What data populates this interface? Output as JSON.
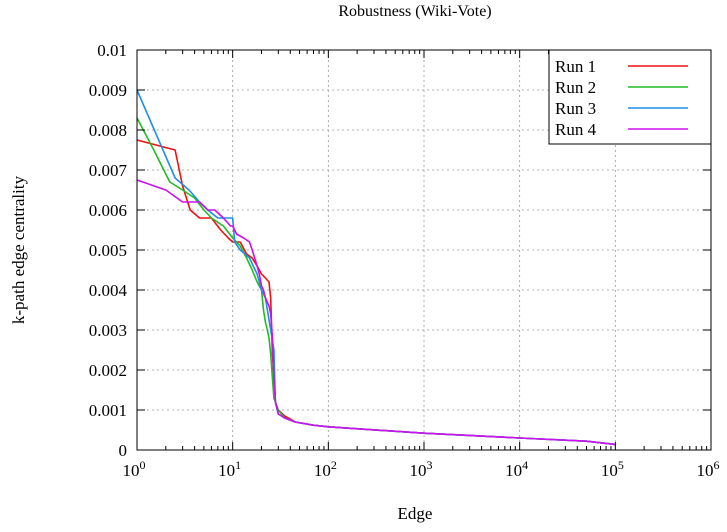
{
  "chart_data": {
    "type": "line",
    "title": "Robustness (Wiki-Vote)",
    "xlabel": "Edge",
    "ylabel": "k-path edge centrality",
    "xscale": "log",
    "xlim": [
      1,
      1000000
    ],
    "ylim": [
      0,
      0.01
    ],
    "grid": true,
    "legend_position": "top-right",
    "x_ticks": [
      {
        "base": "10",
        "exp": "0",
        "value": 1
      },
      {
        "base": "10",
        "exp": "1",
        "value": 10
      },
      {
        "base": "10",
        "exp": "2",
        "value": 100
      },
      {
        "base": "10",
        "exp": "3",
        "value": 1000
      },
      {
        "base": "10",
        "exp": "4",
        "value": 10000
      },
      {
        "base": "10",
        "exp": "5",
        "value": 100000
      },
      {
        "base": "10",
        "exp": "6",
        "value": 1000000
      }
    ],
    "y_ticks": [
      {
        "label": "0",
        "value": 0
      },
      {
        "label": "0.001",
        "value": 0.001
      },
      {
        "label": "0.002",
        "value": 0.002
      },
      {
        "label": "0.003",
        "value": 0.003
      },
      {
        "label": "0.004",
        "value": 0.004
      },
      {
        "label": "0.005",
        "value": 0.005
      },
      {
        "label": "0.006",
        "value": 0.006
      },
      {
        "label": "0.007",
        "value": 0.007
      },
      {
        "label": "0.008",
        "value": 0.008
      },
      {
        "label": "0.009",
        "value": 0.009
      },
      {
        "label": "0.01",
        "value": 0.01
      }
    ],
    "series": [
      {
        "name": "Run 1",
        "color": "#ee1111",
        "x": [
          1,
          2.5,
          3,
          3.6,
          4.5,
          6,
          7.5,
          9,
          10,
          12,
          14,
          16,
          18,
          20,
          22,
          24,
          25,
          26,
          27,
          28,
          30,
          35,
          45,
          70,
          100,
          1000,
          10000,
          50000,
          100000
        ],
        "y": [
          0.00775,
          0.0075,
          0.0066,
          0.006,
          0.0058,
          0.0058,
          0.0055,
          0.0053,
          0.0052,
          0.0052,
          0.0049,
          0.0048,
          0.0046,
          0.0044,
          0.0043,
          0.0042,
          0.0038,
          0.0024,
          0.0018,
          0.0012,
          0.001,
          0.00085,
          0.0007,
          0.00062,
          0.00058,
          0.00042,
          0.0003,
          0.00022,
          0.00014
        ]
      },
      {
        "name": "Run 2",
        "color": "#22bb22",
        "x": [
          1,
          1.5,
          2.2,
          3,
          4,
          5,
          6,
          8,
          10,
          12,
          14,
          16,
          18,
          20,
          21,
          22,
          23,
          24,
          25,
          26,
          27,
          30,
          35,
          45,
          70,
          100,
          1000,
          10000,
          50000,
          100000
        ],
        "y": [
          0.0083,
          0.0075,
          0.0067,
          0.0065,
          0.0063,
          0.006,
          0.0058,
          0.0056,
          0.0053,
          0.0051,
          0.0048,
          0.0045,
          0.0042,
          0.004,
          0.0035,
          0.0032,
          0.003,
          0.0028,
          0.0024,
          0.0018,
          0.0013,
          0.001,
          0.0008,
          0.0007,
          0.00062,
          0.00058,
          0.00042,
          0.0003,
          0.00022,
          0.00014
        ]
      },
      {
        "name": "Run 3",
        "color": "#1e8fe8",
        "x": [
          1,
          2.5,
          3.5,
          4.5,
          5.5,
          7,
          8,
          10,
          10.5,
          12,
          15,
          18,
          20,
          22,
          25,
          27,
          28,
          30,
          35,
          45,
          70,
          100,
          1000,
          10000,
          50000,
          100000
        ],
        "y": [
          0.009,
          0.0068,
          0.0065,
          0.0062,
          0.006,
          0.0058,
          0.0058,
          0.0058,
          0.0052,
          0.005,
          0.0048,
          0.0044,
          0.004,
          0.0038,
          0.003,
          0.0025,
          0.0012,
          0.0009,
          0.0008,
          0.0007,
          0.00062,
          0.00058,
          0.00042,
          0.0003,
          0.00022,
          0.00014
        ]
      },
      {
        "name": "Run 4",
        "color": "#cc11ee",
        "x": [
          1,
          2,
          3,
          4.5,
          5.5,
          6.5,
          8,
          9.5,
          10,
          11,
          13,
          15,
          16,
          17,
          18,
          19,
          20,
          21,
          22,
          24,
          25,
          26,
          27,
          28,
          30,
          35,
          45,
          70,
          100,
          1000,
          10000,
          50000,
          100000
        ],
        "y": [
          0.00675,
          0.0065,
          0.0062,
          0.0062,
          0.006,
          0.006,
          0.0058,
          0.0056,
          0.0056,
          0.0054,
          0.0053,
          0.0052,
          0.005,
          0.0048,
          0.0046,
          0.0044,
          0.0041,
          0.004,
          0.0038,
          0.0036,
          0.0034,
          0.0028,
          0.0018,
          0.0012,
          0.0009,
          0.0008,
          0.0007,
          0.00062,
          0.00058,
          0.00042,
          0.0003,
          0.00022,
          0.00014
        ]
      }
    ]
  }
}
